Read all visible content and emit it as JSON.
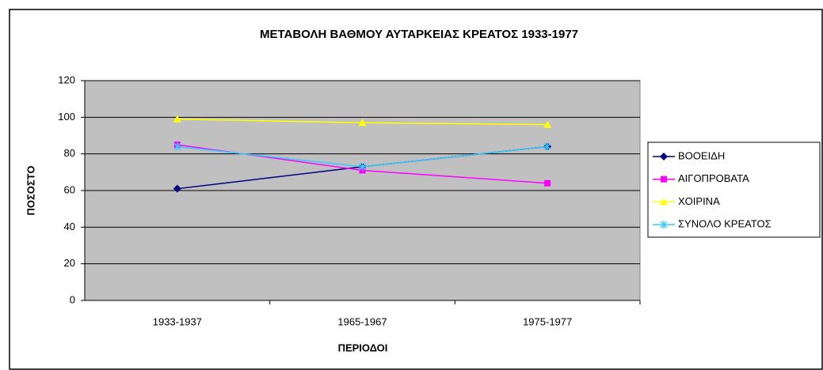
{
  "chart_data": {
    "type": "line",
    "title": "ΜΕΤΑΒΟΛΗ ΒΑΘΜΟΥ ΑΥΤΑΡΚΕΙΑΣ ΚΡΕΑΤΟΣ 1933-1977",
    "x_label": "ΠΕΡΙΟΔΟΙ",
    "y_label": "ΠΟΣΟΣΤΟ",
    "categories": [
      "1933-1937",
      "1965-1967",
      "1975-1977"
    ],
    "series": [
      {
        "name": "ΒΟΟΕΙΔΗ",
        "color": "#000080",
        "marker": "diamond",
        "values": [
          61,
          73,
          84
        ]
      },
      {
        "name": "ΑΙΓΟΠΡΟΒΑΤΑ",
        "color": "#ff00ff",
        "marker": "square",
        "values": [
          85,
          71,
          64
        ]
      },
      {
        "name": "ΧΟΙΡΙΝΑ",
        "color": "#ffff00",
        "marker": "triangle",
        "values": [
          99,
          97,
          96
        ]
      },
      {
        "name": "ΣΥΝΟΛΟ ΚΡΕΑΤΟΣ",
        "color": "#33ccff",
        "marker": "x",
        "values": [
          84,
          73,
          84
        ]
      }
    ],
    "ylim": [
      0,
      120
    ],
    "yticks": [
      0,
      20,
      40,
      60,
      80,
      100,
      120
    ],
    "grid": true,
    "legend": "right"
  }
}
